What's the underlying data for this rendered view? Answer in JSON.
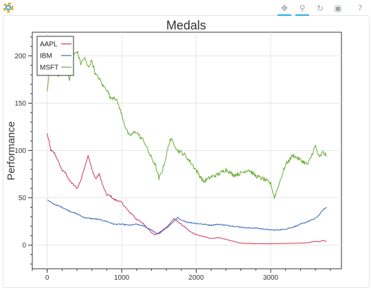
{
  "toolbar": {
    "tools": [
      {
        "name": "pan-tool",
        "icon": "pan-icon",
        "glyph": "✥"
      },
      {
        "name": "wheel-zoom-tool",
        "icon": "wheel-zoom-icon",
        "glyph": "⚲"
      },
      {
        "name": "reset-tool",
        "icon": "reset-icon",
        "glyph": "↻"
      },
      {
        "name": "save-tool",
        "icon": "save-icon",
        "glyph": "▣"
      },
      {
        "name": "help-tool",
        "icon": "help-icon",
        "glyph": "?"
      }
    ]
  },
  "chart_data": {
    "type": "line",
    "title": "Medals",
    "xlabel": "",
    "ylabel": "Performance",
    "xlim": [
      -200,
      3950
    ],
    "ylim": [
      -25,
      225
    ],
    "x_ticks": [
      0,
      1000,
      2000,
      3000
    ],
    "y_ticks": [
      0,
      50,
      100,
      150,
      200
    ],
    "grid": true,
    "legend_position": "top-left",
    "series": [
      {
        "name": "AAPL",
        "color": "#cc3355",
        "x": [
          0,
          50,
          100,
          150,
          200,
          250,
          300,
          350,
          400,
          450,
          500,
          550,
          600,
          650,
          700,
          750,
          800,
          850,
          900,
          950,
          1000,
          1050,
          1100,
          1150,
          1200,
          1250,
          1300,
          1350,
          1400,
          1450,
          1500,
          1550,
          1600,
          1650,
          1700,
          1750,
          1800,
          1850,
          1900,
          1950,
          2000,
          2100,
          2200,
          2300,
          2400,
          2500,
          2600,
          2800,
          3000,
          3200,
          3400,
          3500,
          3600,
          3650,
          3700,
          3750
        ],
        "y": [
          118,
          100,
          97,
          88,
          79,
          76,
          68,
          64,
          60,
          68,
          82,
          95,
          80,
          70,
          75,
          62,
          53,
          52,
          48,
          47,
          45,
          40,
          35,
          32,
          27,
          25,
          22,
          18,
          13,
          11,
          13,
          16,
          19,
          23,
          28,
          25,
          22,
          19,
          15,
          13,
          11,
          9,
          7,
          8,
          6,
          4,
          2,
          1.5,
          1.5,
          1.8,
          2,
          2.5,
          4,
          3.5,
          5,
          4
        ]
      },
      {
        "name": "IBM",
        "color": "#3366bb",
        "x": [
          0,
          50,
          100,
          200,
          300,
          400,
          500,
          600,
          700,
          800,
          900,
          1000,
          1100,
          1200,
          1300,
          1400,
          1450,
          1500,
          1550,
          1600,
          1700,
          1750,
          1800,
          1900,
          2000,
          2100,
          2200,
          2300,
          2400,
          2500,
          2600,
          2700,
          2800,
          2900,
          3000,
          3100,
          3200,
          3300,
          3400,
          3500,
          3600,
          3650,
          3700,
          3750
        ],
        "y": [
          48,
          45,
          43,
          40,
          36,
          33,
          29,
          28,
          27,
          25,
          22,
          22,
          21,
          22,
          20,
          16,
          13,
          12,
          15,
          18,
          25,
          29,
          26,
          24,
          23,
          22,
          21,
          22,
          21,
          20,
          19,
          18,
          18,
          17,
          16,
          16,
          17,
          19,
          22,
          25,
          28,
          32,
          37,
          40
        ]
      },
      {
        "name": "MSFT",
        "color": "#66aa33",
        "x": [
          0,
          30,
          60,
          100,
          150,
          200,
          250,
          300,
          350,
          400,
          450,
          500,
          550,
          600,
          650,
          700,
          750,
          800,
          850,
          900,
          950,
          1000,
          1050,
          1100,
          1150,
          1200,
          1250,
          1300,
          1350,
          1400,
          1450,
          1500,
          1550,
          1600,
          1650,
          1700,
          1750,
          1800,
          1850,
          1900,
          1950,
          2000,
          2100,
          2200,
          2300,
          2400,
          2500,
          2600,
          2700,
          2800,
          2900,
          3000,
          3050,
          3100,
          3200,
          3300,
          3400,
          3500,
          3600,
          3650,
          3700,
          3750
        ],
        "y": [
          162,
          185,
          215,
          195,
          178,
          190,
          183,
          175,
          200,
          205,
          192,
          198,
          188,
          195,
          180,
          176,
          168,
          165,
          155,
          157,
          150,
          138,
          125,
          115,
          118,
          120,
          114,
          110,
          100,
          92,
          85,
          70,
          80,
          95,
          112,
          108,
          100,
          98,
          95,
          90,
          85,
          79,
          67,
          72,
          75,
          80,
          74,
          76,
          80,
          73,
          70,
          65,
          50,
          62,
          85,
          95,
          90,
          85,
          105,
          92,
          98,
          95
        ]
      }
    ]
  }
}
